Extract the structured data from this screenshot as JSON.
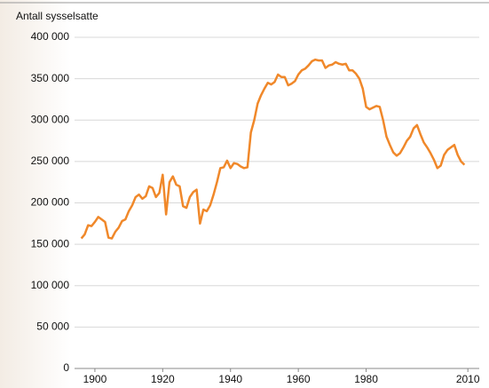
{
  "chart_data": {
    "type": "line",
    "y_axis_label": "Antall sysselsatte",
    "x": [
      1896,
      1897,
      1898,
      1899,
      1900,
      1901,
      1902,
      1903,
      1904,
      1905,
      1906,
      1907,
      1908,
      1909,
      1910,
      1911,
      1912,
      1913,
      1914,
      1915,
      1916,
      1917,
      1918,
      1919,
      1920,
      1921,
      1922,
      1923,
      1924,
      1925,
      1926,
      1927,
      1928,
      1929,
      1930,
      1931,
      1932,
      1933,
      1934,
      1935,
      1936,
      1937,
      1938,
      1939,
      1940,
      1941,
      1942,
      1943,
      1944,
      1945,
      1946,
      1947,
      1948,
      1949,
      1950,
      1951,
      1952,
      1953,
      1954,
      1955,
      1956,
      1957,
      1958,
      1959,
      1960,
      1961,
      1962,
      1963,
      1964,
      1965,
      1966,
      1967,
      1968,
      1969,
      1970,
      1971,
      1972,
      1973,
      1974,
      1975,
      1976,
      1977,
      1978,
      1979,
      1980,
      1981,
      1982,
      1983,
      1984,
      1985,
      1986,
      1987,
      1988,
      1989,
      1990,
      1991,
      1992,
      1993,
      1994,
      1995,
      1996,
      1997,
      1998,
      1999,
      2000,
      2001,
      2002,
      2003,
      2004,
      2005,
      2006,
      2007,
      2008,
      2009
    ],
    "series": [
      {
        "name": "Antall sysselsatte",
        "color": "#f0882a",
        "values": [
          157000,
          162000,
          173000,
          172000,
          177000,
          183000,
          180000,
          177000,
          158000,
          157000,
          165000,
          170000,
          178000,
          180000,
          190000,
          197000,
          207000,
          210000,
          205000,
          208000,
          220000,
          218000,
          207000,
          212000,
          234000,
          186000,
          225000,
          232000,
          222000,
          220000,
          196000,
          194000,
          207000,
          213000,
          216000,
          175000,
          192000,
          190000,
          197000,
          210000,
          225000,
          242000,
          243000,
          251000,
          242000,
          248000,
          247000,
          244000,
          242000,
          243000,
          285000,
          300000,
          320000,
          330000,
          338000,
          345000,
          343000,
          346000,
          355000,
          352000,
          352000,
          342000,
          344000,
          347000,
          355000,
          360000,
          362000,
          366000,
          371000,
          373000,
          372000,
          372000,
          363000,
          366000,
          367000,
          370000,
          368000,
          367000,
          368000,
          360000,
          360000,
          356000,
          350000,
          338000,
          316000,
          313000,
          315000,
          317000,
          316000,
          300000,
          280000,
          270000,
          261000,
          257000,
          260000,
          267000,
          275000,
          280000,
          290000,
          294000,
          283000,
          273000,
          267000,
          260000,
          252000,
          242000,
          245000,
          258000,
          264000,
          267000,
          270000,
          258000,
          250000,
          246000
        ]
      }
    ],
    "xlim": [
      1894,
      2011
    ],
    "xticks": [
      1900,
      1920,
      1940,
      1960,
      1980,
      2010
    ],
    "ylim": [
      0,
      400000
    ],
    "yticks": [
      {
        "value": 0,
        "label": "0"
      },
      {
        "value": 50000,
        "label": "50 000"
      },
      {
        "value": 100000,
        "label": "100 000"
      },
      {
        "value": 150000,
        "label": "150 000"
      },
      {
        "value": 200000,
        "label": "200 000"
      },
      {
        "value": 250000,
        "label": "250 000"
      },
      {
        "value": 300000,
        "label": "300 000"
      },
      {
        "value": 350000,
        "label": "350 000"
      },
      {
        "value": 400000,
        "label": "400 000"
      }
    ],
    "grid": true
  }
}
